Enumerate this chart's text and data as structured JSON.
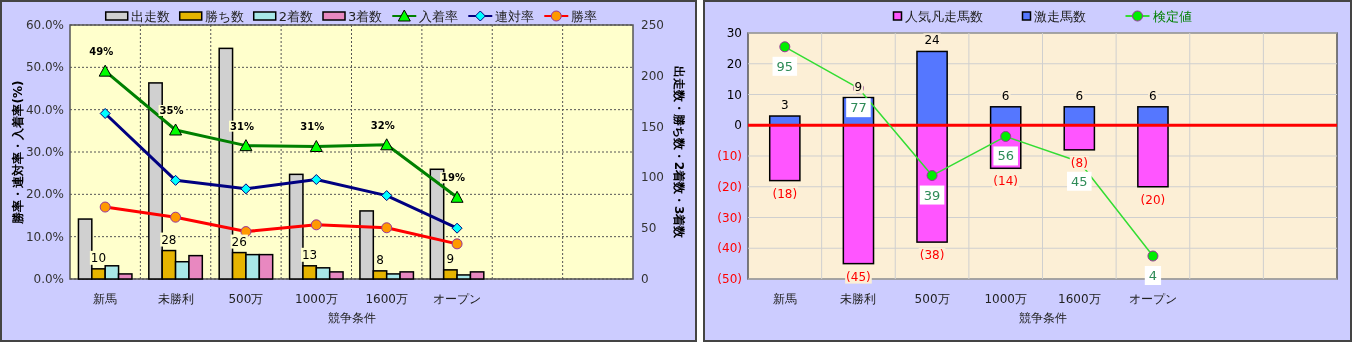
{
  "chart_data": [
    {
      "type": "bar",
      "categories": [
        "新馬",
        "未勝利",
        "500万",
        "1000万",
        "1600万",
        "オープン",
        null,
        null
      ],
      "xlabel": "競争条件",
      "ylabel": "勝率・連対率・入着率(%)",
      "y2label": "出走数・勝ち数・2着数・3着数",
      "ylim": [
        0,
        60
      ],
      "yticks": [
        {
          "value": 0,
          "label": "0.0%"
        },
        {
          "value": 10,
          "label": "10.0%"
        },
        {
          "value": 20,
          "label": "20.0%"
        },
        {
          "value": 30,
          "label": "30.0%"
        },
        {
          "value": 40,
          "label": "40.0%"
        },
        {
          "value": 50,
          "label": "50.0%"
        },
        {
          "value": 60,
          "label": "60.0%"
        }
      ],
      "y2lim": [
        0,
        250
      ],
      "y2ticks": [
        0,
        50,
        100,
        150,
        200,
        250
      ],
      "grid": true,
      "legend": "top",
      "series": [
        {
          "name": "出走数",
          "axis": "y2",
          "color": "#d0d0d0",
          "values": [
            59,
            193,
            227,
            103,
            67,
            108,
            null,
            null
          ]
        },
        {
          "name": "勝ち数",
          "axis": "y2",
          "color": "#e6b400",
          "values": [
            10,
            28,
            26,
            13,
            8,
            9,
            null,
            null
          ],
          "value_labels": [
            "10",
            "28",
            "26",
            "13",
            "8",
            "9",
            null,
            null
          ]
        },
        {
          "name": "2着数",
          "axis": "y2",
          "color": "#a8e8e8",
          "values": [
            13,
            17,
            24,
            11,
            5,
            4,
            null,
            null
          ]
        },
        {
          "name": "3着数",
          "axis": "y2",
          "color": "#e888c0",
          "values": [
            5,
            23,
            24,
            7,
            7,
            7,
            null,
            null
          ]
        },
        {
          "name": "入着率",
          "type": "line",
          "color": "#008000",
          "marker": "triangle",
          "colors": [
            "#00ff00",
            "#00ff00",
            "#00ff00",
            "#00ff00",
            "#00ff00",
            "#00ff00",
            null,
            null
          ],
          "values": [
            49.1,
            35.2,
            31.5,
            31.3,
            31.7,
            19.3,
            null,
            null
          ],
          "value_labels": [
            "49%",
            "35%",
            "31%",
            "31%",
            "32%",
            "19%",
            null,
            null
          ]
        },
        {
          "name": "連対率",
          "type": "line",
          "color": "#000080",
          "marker": "diamond",
          "colors": [
            "#00ffff",
            "#00ffff",
            "#00ffff",
            "#00ffff",
            "#00ffff",
            "#00ffff",
            null,
            null
          ],
          "values": [
            39.1,
            23.3,
            21.3,
            23.5,
            19.7,
            12.0,
            null,
            null
          ]
        },
        {
          "name": "勝率",
          "type": "line",
          "color": "#ff0000",
          "marker": "circle",
          "colors": [
            "#ff9900",
            "#ff9900",
            "#ff9900",
            "#ff9900",
            "#ff9900",
            "#ff9900",
            null,
            null
          ],
          "values": [
            17.0,
            14.6,
            11.2,
            12.8,
            12.1,
            8.3,
            null,
            null
          ]
        }
      ]
    },
    {
      "type": "bar",
      "stacked": true,
      "categories": [
        "新馬",
        "未勝利",
        "500万",
        "1000万",
        "1600万",
        "オープン",
        null,
        null
      ],
      "xlabel": "競争条件",
      "ylim": [
        -50,
        30
      ],
      "yticks": [
        30,
        20,
        10,
        0,
        {
          "value": -10,
          "label": "(10)"
        },
        {
          "value": -20,
          "label": "(20)"
        },
        {
          "value": -30,
          "label": "(30)"
        },
        {
          "value": -40,
          "label": "(40)"
        },
        {
          "value": -50,
          "label": "(50)"
        }
      ],
      "y2lim": [
        -6,
        101
      ],
      "grid": true,
      "legend": "top",
      "ref_lines": [
        {
          "axis": "y",
          "value": 0,
          "color": "#ff0000"
        }
      ],
      "series": [
        {
          "name": "人気凡走馬数",
          "color": "#ff55ff",
          "values": [
            -18,
            -45,
            -38,
            -14,
            -8,
            -20,
            null,
            null
          ],
          "value_labels": [
            "(18)",
            "(45)",
            "(38)",
            "(14)",
            "(8)",
            "(20)",
            null,
            null
          ]
        },
        {
          "name": "激走馬数",
          "color": "#5577ff",
          "values": [
            3,
            9,
            24,
            6,
            6,
            6,
            null,
            null
          ],
          "value_labels": [
            "3",
            "9",
            "24",
            "6",
            "6",
            "6",
            null,
            null
          ]
        },
        {
          "name": "検定値",
          "type": "line",
          "axis": "y2",
          "color": "#33dd33",
          "marker": "circle",
          "colors": [
            "#00ee00",
            "#00ee00",
            "#00ee00",
            "#00ee00",
            "#00ee00",
            "#00ee00",
            null,
            null
          ],
          "values": [
            95,
            77,
            39,
            56,
            45,
            4,
            null,
            null
          ],
          "value_labels": [
            "95",
            "77",
            "39",
            "56",
            "45",
            "4",
            null,
            null
          ]
        }
      ]
    }
  ]
}
